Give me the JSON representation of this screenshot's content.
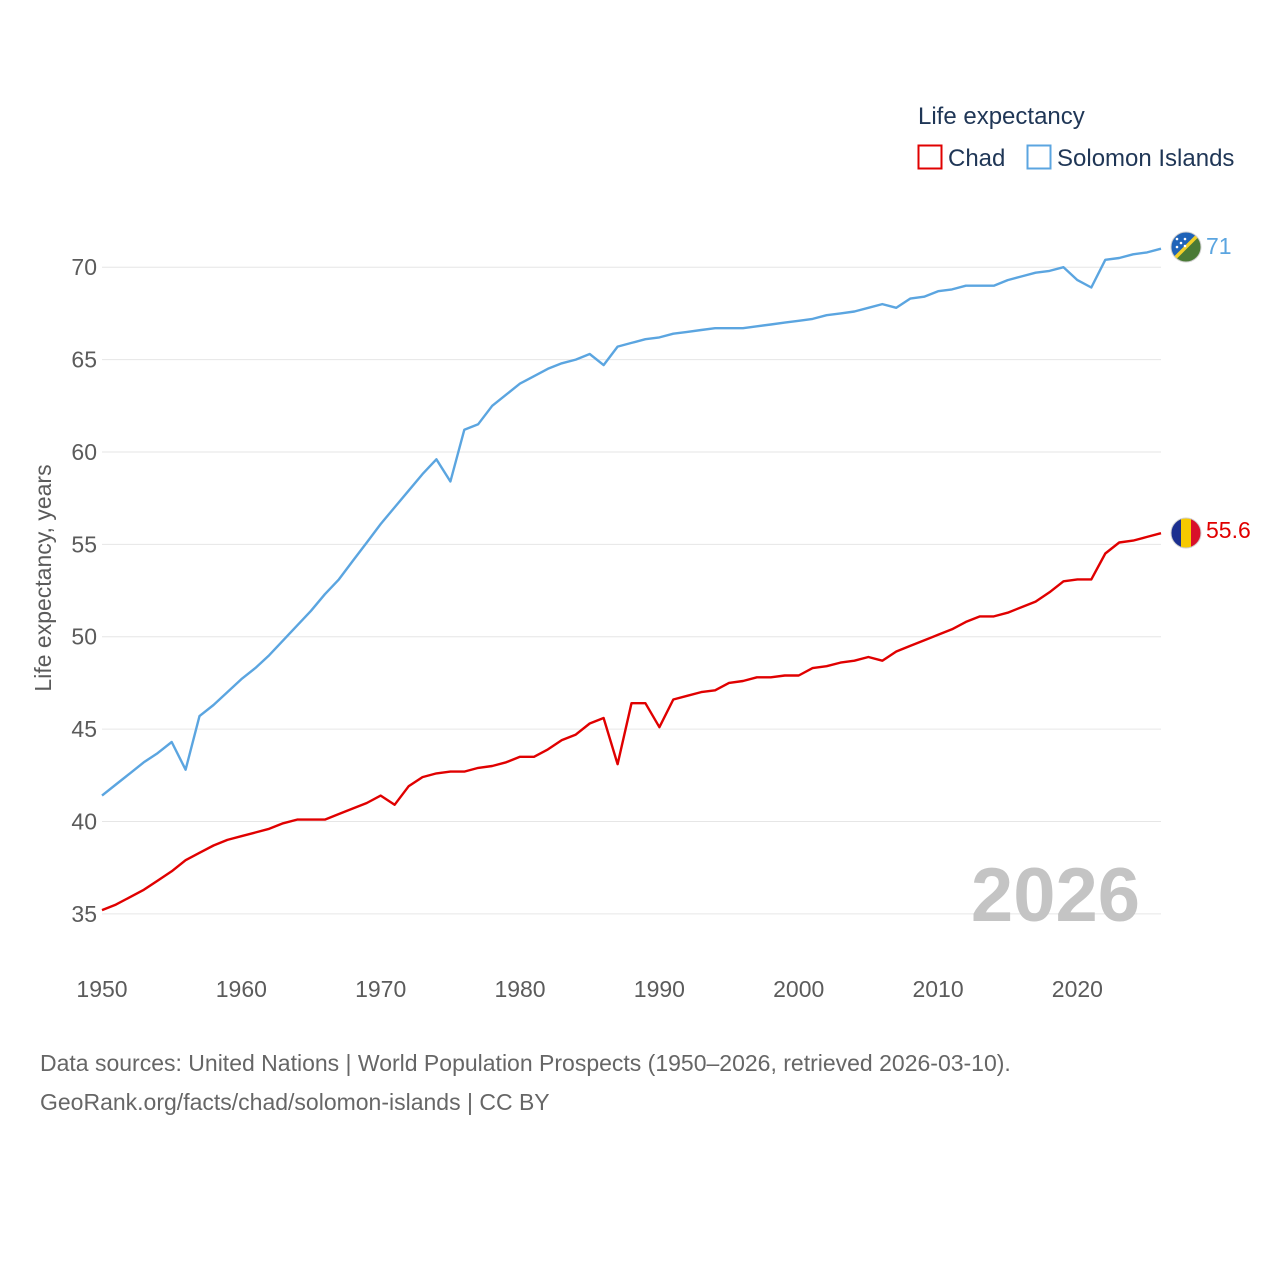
{
  "chart_data": {
    "type": "line",
    "legend_title": "Life expectancy",
    "ylabel": "Life expectancy, years",
    "xlabel": "",
    "ylim": [
      32.5,
      72.5
    ],
    "xlim": [
      1950,
      2026
    ],
    "yticks": [
      35,
      40,
      45,
      50,
      55,
      60,
      65,
      70
    ],
    "xticks": [
      1950,
      1960,
      1970,
      1980,
      1990,
      2000,
      2010,
      2020
    ],
    "year_label": "2026",
    "legend_placement": "top-right",
    "x": [
      1950,
      1951,
      1952,
      1953,
      1954,
      1955,
      1956,
      1957,
      1958,
      1959,
      1960,
      1961,
      1962,
      1963,
      1964,
      1965,
      1966,
      1967,
      1968,
      1969,
      1970,
      1971,
      1972,
      1973,
      1974,
      1975,
      1976,
      1977,
      1978,
      1979,
      1980,
      1981,
      1982,
      1983,
      1984,
      1985,
      1986,
      1987,
      1988,
      1989,
      1990,
      1991,
      1992,
      1993,
      1994,
      1995,
      1996,
      1997,
      1998,
      1999,
      2000,
      2001,
      2002,
      2003,
      2004,
      2005,
      2006,
      2007,
      2008,
      2009,
      2010,
      2011,
      2012,
      2013,
      2014,
      2015,
      2016,
      2017,
      2018,
      2019,
      2020,
      2021,
      2022,
      2023,
      2024,
      2025,
      2026
    ],
    "series": [
      {
        "name": "Chad",
        "color": "#e00000",
        "end_label": "55.6",
        "flag": "chad-flag",
        "values": [
          35.2,
          35.5,
          35.9,
          36.3,
          36.8,
          37.3,
          37.9,
          38.3,
          38.7,
          39.0,
          39.2,
          39.4,
          39.6,
          39.9,
          40.1,
          40.1,
          40.1,
          40.4,
          40.7,
          41.0,
          41.4,
          40.9,
          41.9,
          42.4,
          42.6,
          42.7,
          42.7,
          42.9,
          43.0,
          43.2,
          43.5,
          43.5,
          43.9,
          44.4,
          44.7,
          45.3,
          45.6,
          43.1,
          46.4,
          46.4,
          45.1,
          46.6,
          46.8,
          47.0,
          47.1,
          47.5,
          47.6,
          47.8,
          47.8,
          47.9,
          47.9,
          48.3,
          48.4,
          48.6,
          48.7,
          48.9,
          48.7,
          49.2,
          49.5,
          49.8,
          50.1,
          50.4,
          50.8,
          51.1,
          51.1,
          51.3,
          51.6,
          51.9,
          52.4,
          53.0,
          53.1,
          53.1,
          54.5,
          55.1,
          55.2,
          55.4,
          55.6
        ]
      },
      {
        "name": "Solomon Islands",
        "color": "#5ba5e0",
        "end_label": "71",
        "flag": "solomon-islands-flag",
        "values": [
          41.4,
          42.0,
          42.6,
          43.2,
          43.7,
          44.3,
          42.8,
          45.7,
          46.3,
          47.0,
          47.7,
          48.3,
          49.0,
          49.8,
          50.6,
          51.4,
          52.3,
          53.1,
          54.1,
          55.1,
          56.1,
          57.0,
          57.9,
          58.8,
          59.6,
          58.4,
          61.2,
          61.5,
          62.5,
          63.1,
          63.7,
          64.1,
          64.5,
          64.8,
          65.0,
          65.3,
          64.7,
          65.7,
          65.9,
          66.1,
          66.2,
          66.4,
          66.5,
          66.6,
          66.7,
          66.7,
          66.7,
          66.8,
          66.9,
          67.0,
          67.1,
          67.2,
          67.4,
          67.5,
          67.6,
          67.8,
          68.0,
          67.8,
          68.3,
          68.4,
          68.7,
          68.8,
          69.0,
          69.0,
          69.0,
          69.3,
          69.5,
          69.7,
          69.8,
          70.0,
          69.3,
          68.9,
          70.4,
          70.5,
          70.7,
          70.8,
          71.0
        ]
      }
    ]
  },
  "footer": {
    "line1": "Data sources: United Nations | World Population Prospects (1950–2026, retrieved 2026-03-10).",
    "line2": "GeoRank.org/facts/chad/solomon-islands | CC BY"
  }
}
